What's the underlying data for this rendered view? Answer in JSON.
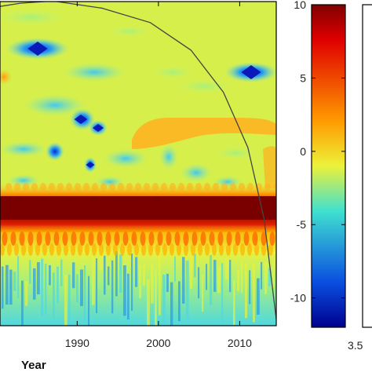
{
  "chart_data": [
    {
      "type": "heatmap",
      "title": "",
      "xlabel": "Year",
      "ylabel": "",
      "x_ticks": [
        1990,
        2000,
        2010
      ],
      "x_tick_labels": [
        "1990",
        "2000",
        "2010"
      ],
      "xlim": [
        1980.5,
        2014.5
      ],
      "colormap": "jet",
      "cone_of_influence": {
        "x": [
          1980.5,
          1983,
          1987,
          1993,
          1999,
          2004,
          2008,
          2011,
          2013,
          2014.5
        ],
        "y_frac": [
          0.015,
          0.005,
          -0.002,
          0.02,
          0.065,
          0.15,
          0.28,
          0.45,
          0.67,
          0.98
        ]
      }
    },
    {
      "type": "colorbar",
      "ticks": [
        10,
        5,
        0,
        -5,
        -10
      ],
      "tick_labels": [
        "10",
        "5",
        "0",
        "-5",
        "-10"
      ],
      "range": [
        -12,
        10
      ],
      "colormap": "jet"
    },
    {
      "type": "colorbar",
      "tick_labels": [
        "3.5"
      ],
      "note_visible_partial": true
    }
  ],
  "colors": {
    "dark_red": "#800000",
    "red": "#e00000",
    "orange": "#ff8a00",
    "yellow": "#f5ef3a",
    "light_green": "#b9f06a",
    "cyan": "#35d8e8",
    "blue": "#0a5ae0",
    "dark_blue": "#00008f",
    "axis": "#000000"
  }
}
